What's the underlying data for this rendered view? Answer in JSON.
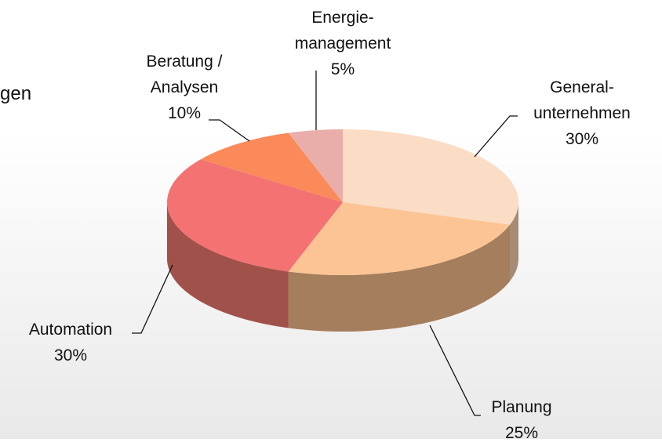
{
  "chart_data": {
    "type": "pie3d",
    "annotations": [
      "gen"
    ],
    "categories": [
      "General-\nunternehmen",
      "Planung",
      "Automation",
      "Beratung /\nAnalysen",
      "Energie-\nmanagement"
    ],
    "values": [
      30,
      25,
      30,
      10,
      5
    ],
    "value_labels": [
      "30%",
      "25%",
      "30%",
      "10%",
      "5%"
    ],
    "colors": [
      "#fbdcc4",
      "#fcc494",
      "#f47272",
      "#fa8a5a",
      "#e9aeaa"
    ]
  }
}
